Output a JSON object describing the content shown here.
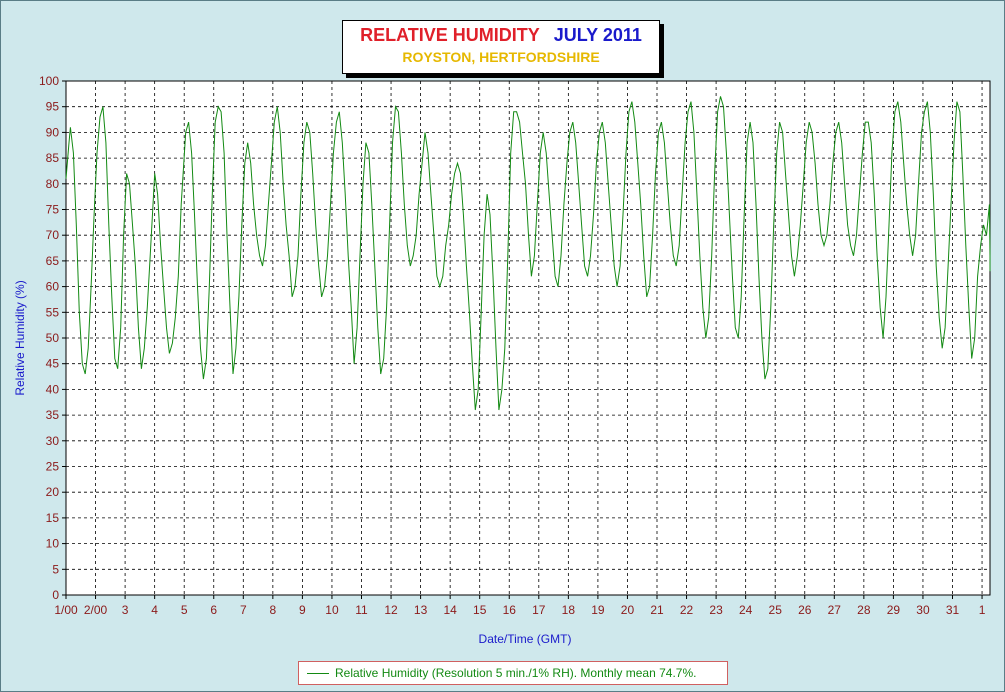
{
  "chart_data": {
    "type": "line",
    "title": "RELATIVE HUMIDITY",
    "title_period": "JULY 2011",
    "subtitle": "ROYSTON, HERTFORDSHIRE",
    "xlabel": "Date/Time (GMT)",
    "ylabel": "Relative Humidity (%)",
    "ylim": [
      0,
      100
    ],
    "xlim_days": [
      0,
      31.4
    ],
    "grid": true,
    "legend_position": "bottom",
    "y_ticks": [
      "0",
      "5",
      "10",
      "15",
      "20",
      "25",
      "30",
      "35",
      "40",
      "45",
      "50",
      "55",
      "60",
      "65",
      "70",
      "75",
      "80",
      "85",
      "90",
      "95",
      "100"
    ],
    "x_tick_labels": [
      "1/00",
      "2/00",
      "3",
      "4",
      "5",
      "6",
      "7",
      "8",
      "9",
      "10",
      "11",
      "12",
      "13",
      "14",
      "15",
      "16",
      "17",
      "18",
      "19",
      "20",
      "21",
      "22",
      "23",
      "24",
      "25",
      "26",
      "27",
      "28",
      "29",
      "30",
      "31",
      "1"
    ],
    "series": [
      {
        "name": "Relative Humidity (Resolution 5 min./1% RH). Monthly mean 74.7%.",
        "color": "#138a13",
        "points": [
          [
            0.0,
            81
          ],
          [
            0.1,
            88
          ],
          [
            0.15,
            91
          ],
          [
            0.25,
            86
          ],
          [
            0.35,
            72
          ],
          [
            0.45,
            55
          ],
          [
            0.55,
            45
          ],
          [
            0.65,
            43
          ],
          [
            0.75,
            48
          ],
          [
            0.85,
            60
          ],
          [
            0.95,
            74
          ],
          [
            1.05,
            86
          ],
          [
            1.15,
            93
          ],
          [
            1.25,
            95
          ],
          [
            1.35,
            88
          ],
          [
            1.45,
            72
          ],
          [
            1.55,
            58
          ],
          [
            1.65,
            46
          ],
          [
            1.75,
            44
          ],
          [
            1.85,
            52
          ],
          [
            1.95,
            70
          ],
          [
            2.05,
            82
          ],
          [
            2.15,
            80
          ],
          [
            2.25,
            72
          ],
          [
            2.35,
            64
          ],
          [
            2.45,
            52
          ],
          [
            2.55,
            44
          ],
          [
            2.65,
            48
          ],
          [
            2.75,
            56
          ],
          [
            2.85,
            66
          ],
          [
            3.0,
            82
          ],
          [
            3.1,
            78
          ],
          [
            3.2,
            68
          ],
          [
            3.3,
            60
          ],
          [
            3.4,
            52
          ],
          [
            3.5,
            47
          ],
          [
            3.6,
            49
          ],
          [
            3.7,
            54
          ],
          [
            3.8,
            62
          ],
          [
            3.9,
            76
          ],
          [
            4.05,
            90
          ],
          [
            4.15,
            92
          ],
          [
            4.25,
            86
          ],
          [
            4.35,
            74
          ],
          [
            4.45,
            60
          ],
          [
            4.55,
            48
          ],
          [
            4.65,
            42
          ],
          [
            4.75,
            46
          ],
          [
            4.85,
            60
          ],
          [
            4.95,
            78
          ],
          [
            5.05,
            92
          ],
          [
            5.15,
            95
          ],
          [
            5.25,
            94
          ],
          [
            5.35,
            86
          ],
          [
            5.45,
            70
          ],
          [
            5.55,
            56
          ],
          [
            5.65,
            43
          ],
          [
            5.75,
            48
          ],
          [
            5.85,
            58
          ],
          [
            5.95,
            72
          ],
          [
            6.05,
            84
          ],
          [
            6.15,
            88
          ],
          [
            6.25,
            84
          ],
          [
            6.35,
            76
          ],
          [
            6.45,
            70
          ],
          [
            6.55,
            66
          ],
          [
            6.65,
            64
          ],
          [
            6.75,
            68
          ],
          [
            6.85,
            76
          ],
          [
            6.95,
            84
          ],
          [
            7.05,
            92
          ],
          [
            7.15,
            95
          ],
          [
            7.25,
            90
          ],
          [
            7.35,
            80
          ],
          [
            7.45,
            72
          ],
          [
            7.55,
            66
          ],
          [
            7.65,
            58
          ],
          [
            7.75,
            60
          ],
          [
            7.85,
            66
          ],
          [
            7.95,
            78
          ],
          [
            8.05,
            88
          ],
          [
            8.15,
            92
          ],
          [
            8.25,
            90
          ],
          [
            8.35,
            82
          ],
          [
            8.45,
            72
          ],
          [
            8.55,
            64
          ],
          [
            8.65,
            58
          ],
          [
            8.75,
            60
          ],
          [
            8.85,
            66
          ],
          [
            8.95,
            76
          ],
          [
            9.05,
            86
          ],
          [
            9.15,
            92
          ],
          [
            9.25,
            94
          ],
          [
            9.35,
            88
          ],
          [
            9.45,
            78
          ],
          [
            9.55,
            66
          ],
          [
            9.65,
            56
          ],
          [
            9.75,
            45
          ],
          [
            9.85,
            52
          ],
          [
            9.95,
            66
          ],
          [
            10.05,
            80
          ],
          [
            10.15,
            88
          ],
          [
            10.25,
            86
          ],
          [
            10.35,
            76
          ],
          [
            10.45,
            64
          ],
          [
            10.55,
            52
          ],
          [
            10.65,
            43
          ],
          [
            10.75,
            46
          ],
          [
            10.85,
            56
          ],
          [
            10.95,
            72
          ],
          [
            11.05,
            88
          ],
          [
            11.15,
            95
          ],
          [
            11.25,
            94
          ],
          [
            11.35,
            86
          ],
          [
            11.45,
            76
          ],
          [
            11.55,
            68
          ],
          [
            11.65,
            64
          ],
          [
            11.75,
            66
          ],
          [
            11.85,
            70
          ],
          [
            11.95,
            78
          ],
          [
            12.05,
            84
          ],
          [
            12.15,
            90
          ],
          [
            12.25,
            86
          ],
          [
            12.35,
            78
          ],
          [
            12.45,
            70
          ],
          [
            12.55,
            62
          ],
          [
            12.65,
            60
          ],
          [
            12.75,
            62
          ],
          [
            12.85,
            68
          ],
          [
            12.95,
            72
          ],
          [
            13.05,
            78
          ],
          [
            13.15,
            82
          ],
          [
            13.25,
            84
          ],
          [
            13.35,
            82
          ],
          [
            13.45,
            74
          ],
          [
            13.55,
            64
          ],
          [
            13.65,
            55
          ],
          [
            13.75,
            45
          ],
          [
            13.85,
            36
          ],
          [
            13.95,
            40
          ],
          [
            14.05,
            55
          ],
          [
            14.15,
            70
          ],
          [
            14.25,
            78
          ],
          [
            14.35,
            74
          ],
          [
            14.45,
            62
          ],
          [
            14.55,
            48
          ],
          [
            14.65,
            36
          ],
          [
            14.75,
            40
          ],
          [
            14.85,
            48
          ],
          [
            14.95,
            66
          ],
          [
            15.05,
            86
          ],
          [
            15.15,
            94
          ],
          [
            15.25,
            94
          ],
          [
            15.35,
            92
          ],
          [
            15.45,
            86
          ],
          [
            15.55,
            80
          ],
          [
            15.65,
            70
          ],
          [
            15.75,
            62
          ],
          [
            15.85,
            66
          ],
          [
            15.95,
            76
          ],
          [
            16.05,
            86
          ],
          [
            16.15,
            90
          ],
          [
            16.25,
            86
          ],
          [
            16.35,
            78
          ],
          [
            16.45,
            70
          ],
          [
            16.55,
            62
          ],
          [
            16.65,
            60
          ],
          [
            16.75,
            66
          ],
          [
            16.85,
            76
          ],
          [
            16.95,
            84
          ],
          [
            17.05,
            90
          ],
          [
            17.15,
            92
          ],
          [
            17.25,
            88
          ],
          [
            17.35,
            80
          ],
          [
            17.45,
            72
          ],
          [
            17.55,
            64
          ],
          [
            17.65,
            62
          ],
          [
            17.75,
            66
          ],
          [
            17.85,
            74
          ],
          [
            17.95,
            84
          ],
          [
            18.05,
            90
          ],
          [
            18.15,
            92
          ],
          [
            18.25,
            88
          ],
          [
            18.35,
            80
          ],
          [
            18.45,
            72
          ],
          [
            18.55,
            64
          ],
          [
            18.65,
            60
          ],
          [
            18.75,
            64
          ],
          [
            18.85,
            74
          ],
          [
            18.95,
            86
          ],
          [
            19.05,
            94
          ],
          [
            19.15,
            96
          ],
          [
            19.25,
            92
          ],
          [
            19.35,
            84
          ],
          [
            19.45,
            76
          ],
          [
            19.55,
            66
          ],
          [
            19.65,
            58
          ],
          [
            19.75,
            60
          ],
          [
            19.85,
            70
          ],
          [
            19.95,
            82
          ],
          [
            20.05,
            90
          ],
          [
            20.15,
            92
          ],
          [
            20.25,
            88
          ],
          [
            20.35,
            80
          ],
          [
            20.45,
            72
          ],
          [
            20.55,
            66
          ],
          [
            20.65,
            64
          ],
          [
            20.75,
            68
          ],
          [
            20.85,
            78
          ],
          [
            20.95,
            88
          ],
          [
            21.05,
            94
          ],
          [
            21.15,
            96
          ],
          [
            21.25,
            90
          ],
          [
            21.35,
            78
          ],
          [
            21.45,
            66
          ],
          [
            21.55,
            56
          ],
          [
            21.65,
            50
          ],
          [
            21.75,
            54
          ],
          [
            21.85,
            66
          ],
          [
            21.95,
            82
          ],
          [
            22.05,
            94
          ],
          [
            22.15,
            97
          ],
          [
            22.25,
            95
          ],
          [
            22.35,
            86
          ],
          [
            22.45,
            74
          ],
          [
            22.55,
            62
          ],
          [
            22.65,
            52
          ],
          [
            22.75,
            50
          ],
          [
            22.85,
            58
          ],
          [
            22.95,
            74
          ],
          [
            23.05,
            88
          ],
          [
            23.15,
            92
          ],
          [
            23.25,
            88
          ],
          [
            23.35,
            76
          ],
          [
            23.45,
            62
          ],
          [
            23.55,
            50
          ],
          [
            23.65,
            42
          ],
          [
            23.75,
            44
          ],
          [
            23.85,
            56
          ],
          [
            23.95,
            72
          ],
          [
            24.05,
            86
          ],
          [
            24.15,
            92
          ],
          [
            24.25,
            90
          ],
          [
            24.35,
            82
          ],
          [
            24.45,
            74
          ],
          [
            24.55,
            66
          ],
          [
            24.65,
            62
          ],
          [
            24.75,
            66
          ],
          [
            24.85,
            72
          ],
          [
            24.95,
            80
          ],
          [
            25.05,
            88
          ],
          [
            25.15,
            92
          ],
          [
            25.25,
            90
          ],
          [
            25.35,
            84
          ],
          [
            25.45,
            76
          ],
          [
            25.55,
            70
          ],
          [
            25.65,
            68
          ],
          [
            25.75,
            70
          ],
          [
            25.85,
            76
          ],
          [
            25.95,
            84
          ],
          [
            26.05,
            90
          ],
          [
            26.15,
            92
          ],
          [
            26.25,
            88
          ],
          [
            26.35,
            80
          ],
          [
            26.45,
            72
          ],
          [
            26.55,
            68
          ],
          [
            26.65,
            66
          ],
          [
            26.75,
            70
          ],
          [
            26.85,
            78
          ],
          [
            26.95,
            86
          ],
          [
            27.05,
            92
          ],
          [
            27.15,
            92
          ],
          [
            27.25,
            88
          ],
          [
            27.35,
            78
          ],
          [
            27.45,
            66
          ],
          [
            27.55,
            56
          ],
          [
            27.65,
            50
          ],
          [
            27.75,
            58
          ],
          [
            27.85,
            72
          ],
          [
            27.95,
            86
          ],
          [
            28.05,
            94
          ],
          [
            28.15,
            96
          ],
          [
            28.25,
            92
          ],
          [
            28.35,
            84
          ],
          [
            28.45,
            76
          ],
          [
            28.55,
            70
          ],
          [
            28.65,
            66
          ],
          [
            28.75,
            70
          ],
          [
            28.85,
            80
          ],
          [
            28.95,
            90
          ],
          [
            29.05,
            94
          ],
          [
            29.15,
            96
          ],
          [
            29.25,
            90
          ],
          [
            29.35,
            78
          ],
          [
            29.45,
            64
          ],
          [
            29.55,
            54
          ],
          [
            29.65,
            48
          ],
          [
            29.75,
            52
          ],
          [
            29.85,
            64
          ],
          [
            29.95,
            76
          ],
          [
            30.05,
            88
          ],
          [
            30.15,
            96
          ],
          [
            30.25,
            94
          ],
          [
            30.35,
            82
          ],
          [
            30.45,
            68
          ],
          [
            30.55,
            56
          ],
          [
            30.65,
            46
          ],
          [
            30.75,
            50
          ],
          [
            30.85,
            62
          ],
          [
            30.95,
            68
          ],
          [
            31.05,
            72
          ],
          [
            31.15,
            70
          ],
          [
            31.25,
            76
          ],
          [
            31.35,
            66
          ],
          [
            31.4,
            63
          ]
        ]
      }
    ]
  }
}
